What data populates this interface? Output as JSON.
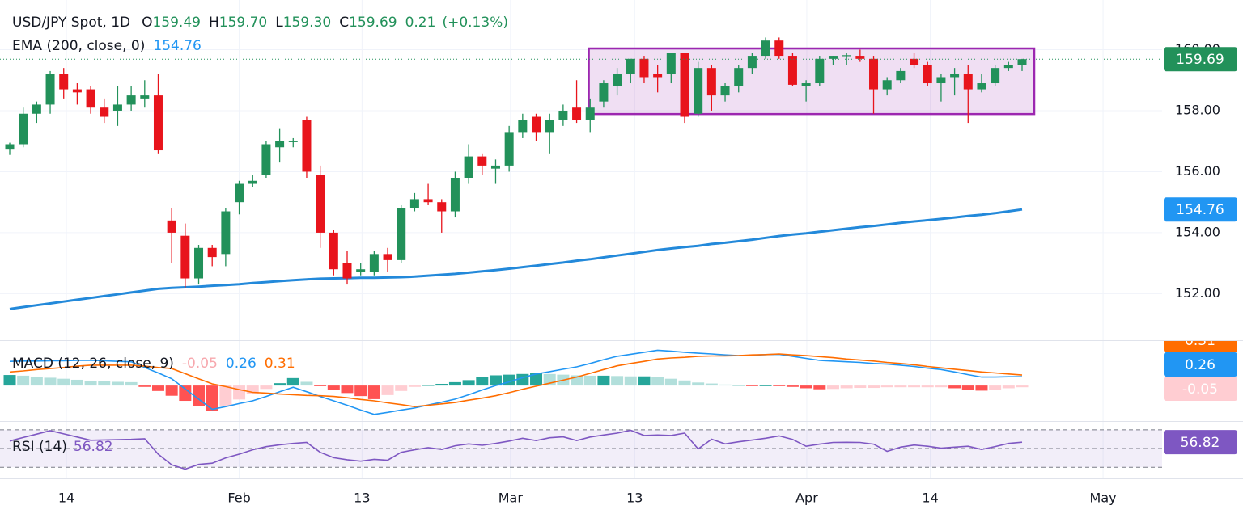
{
  "chart_data": [
    {
      "type": "candlestick",
      "header": {
        "symbol": "USD/JPY Spot, 1D",
        "fields": [
          {
            "key": "O",
            "value": "159.49"
          },
          {
            "key": "H",
            "value": "159.70"
          },
          {
            "key": "L",
            "value": "159.30"
          },
          {
            "key": "C",
            "value": "159.69"
          }
        ],
        "change": "0.21",
        "change_pct": "(+0.13%)"
      },
      "up_color": "#22915a",
      "down_color": "#e8141c",
      "candles": [
        {
          "o": 156.75,
          "h": 156.95,
          "l": 156.55,
          "c": 156.9
        },
        {
          "o": 156.9,
          "h": 158.1,
          "l": 156.8,
          "c": 157.9
        },
        {
          "o": 157.9,
          "h": 158.3,
          "l": 157.6,
          "c": 158.2
        },
        {
          "o": 158.2,
          "h": 159.3,
          "l": 157.9,
          "c": 159.2
        },
        {
          "o": 159.2,
          "h": 159.4,
          "l": 158.4,
          "c": 158.7
        },
        {
          "o": 158.7,
          "h": 158.9,
          "l": 158.2,
          "c": 158.6
        },
        {
          "o": 158.7,
          "h": 158.8,
          "l": 157.9,
          "c": 158.1
        },
        {
          "o": 158.1,
          "h": 158.4,
          "l": 157.6,
          "c": 157.8
        },
        {
          "o": 158.0,
          "h": 158.8,
          "l": 157.5,
          "c": 158.2
        },
        {
          "o": 158.2,
          "h": 158.8,
          "l": 158.0,
          "c": 158.5
        },
        {
          "o": 158.4,
          "h": 159.0,
          "l": 158.1,
          "c": 158.5
        },
        {
          "o": 158.5,
          "h": 159.2,
          "l": 156.6,
          "c": 156.7
        },
        {
          "o": 154.4,
          "h": 154.8,
          "l": 153.0,
          "c": 154.0
        },
        {
          "o": 153.9,
          "h": 154.3,
          "l": 152.2,
          "c": 152.5
        },
        {
          "o": 152.5,
          "h": 153.6,
          "l": 152.3,
          "c": 153.5
        },
        {
          "o": 153.5,
          "h": 153.6,
          "l": 152.9,
          "c": 153.2
        },
        {
          "o": 153.3,
          "h": 154.8,
          "l": 152.9,
          "c": 154.7
        },
        {
          "o": 155.0,
          "h": 155.7,
          "l": 154.6,
          "c": 155.6
        },
        {
          "o": 155.6,
          "h": 155.9,
          "l": 155.5,
          "c": 155.7
        },
        {
          "o": 155.9,
          "h": 157.0,
          "l": 155.8,
          "c": 156.9
        },
        {
          "o": 156.8,
          "h": 157.4,
          "l": 156.3,
          "c": 157.0
        },
        {
          "o": 157.0,
          "h": 157.1,
          "l": 156.8,
          "c": 157.0
        },
        {
          "o": 157.7,
          "h": 157.8,
          "l": 155.8,
          "c": 156.0
        },
        {
          "o": 155.9,
          "h": 156.2,
          "l": 153.5,
          "c": 154.0
        },
        {
          "o": 154.0,
          "h": 154.1,
          "l": 152.6,
          "c": 152.8
        },
        {
          "o": 153.0,
          "h": 153.4,
          "l": 152.3,
          "c": 152.5
        },
        {
          "o": 152.7,
          "h": 153.0,
          "l": 152.6,
          "c": 152.8
        },
        {
          "o": 152.7,
          "h": 153.4,
          "l": 152.6,
          "c": 153.3
        },
        {
          "o": 153.3,
          "h": 153.5,
          "l": 152.7,
          "c": 153.1
        },
        {
          "o": 153.1,
          "h": 154.9,
          "l": 153.0,
          "c": 154.8
        },
        {
          "o": 154.8,
          "h": 155.3,
          "l": 154.7,
          "c": 155.1
        },
        {
          "o": 155.1,
          "h": 155.6,
          "l": 154.9,
          "c": 155.0
        },
        {
          "o": 155.0,
          "h": 155.1,
          "l": 154.0,
          "c": 154.7
        },
        {
          "o": 154.7,
          "h": 156.0,
          "l": 154.5,
          "c": 155.8
        },
        {
          "o": 155.8,
          "h": 156.9,
          "l": 155.6,
          "c": 156.5
        },
        {
          "o": 156.5,
          "h": 156.6,
          "l": 155.9,
          "c": 156.2
        },
        {
          "o": 156.1,
          "h": 156.4,
          "l": 155.6,
          "c": 156.2
        },
        {
          "o": 156.2,
          "h": 157.5,
          "l": 156.0,
          "c": 157.3
        },
        {
          "o": 157.3,
          "h": 157.9,
          "l": 157.1,
          "c": 157.7
        },
        {
          "o": 157.8,
          "h": 157.9,
          "l": 157.0,
          "c": 157.3
        },
        {
          "o": 157.3,
          "h": 157.9,
          "l": 156.6,
          "c": 157.7
        },
        {
          "o": 157.7,
          "h": 158.2,
          "l": 157.5,
          "c": 158.0
        },
        {
          "o": 158.1,
          "h": 159.0,
          "l": 157.6,
          "c": 157.7
        },
        {
          "o": 157.7,
          "h": 158.4,
          "l": 157.3,
          "c": 158.1
        },
        {
          "o": 158.3,
          "h": 159.0,
          "l": 158.1,
          "c": 158.9
        },
        {
          "o": 158.8,
          "h": 159.4,
          "l": 158.5,
          "c": 159.2
        },
        {
          "o": 159.2,
          "h": 159.7,
          "l": 158.9,
          "c": 159.7
        },
        {
          "o": 159.7,
          "h": 159.8,
          "l": 158.9,
          "c": 159.1
        },
        {
          "o": 159.2,
          "h": 159.5,
          "l": 158.6,
          "c": 159.1
        },
        {
          "o": 159.2,
          "h": 159.9,
          "l": 158.9,
          "c": 159.9
        },
        {
          "o": 159.9,
          "h": 159.9,
          "l": 157.6,
          "c": 157.8
        },
        {
          "o": 157.9,
          "h": 159.6,
          "l": 157.8,
          "c": 159.4
        },
        {
          "o": 159.4,
          "h": 159.5,
          "l": 158.0,
          "c": 158.5
        },
        {
          "o": 158.5,
          "h": 158.9,
          "l": 158.3,
          "c": 158.8
        },
        {
          "o": 158.8,
          "h": 159.5,
          "l": 158.6,
          "c": 159.4
        },
        {
          "o": 159.4,
          "h": 159.9,
          "l": 159.2,
          "c": 159.8
        },
        {
          "o": 159.8,
          "h": 160.4,
          "l": 159.7,
          "c": 160.3
        },
        {
          "o": 160.3,
          "h": 160.4,
          "l": 159.7,
          "c": 159.8
        },
        {
          "o": 159.8,
          "h": 159.9,
          "l": 158.8,
          "c": 158.85
        },
        {
          "o": 158.8,
          "h": 159.0,
          "l": 158.3,
          "c": 158.9
        },
        {
          "o": 158.9,
          "h": 159.8,
          "l": 158.8,
          "c": 159.7
        },
        {
          "o": 159.7,
          "h": 159.8,
          "l": 159.5,
          "c": 159.8
        },
        {
          "o": 159.8,
          "h": 159.9,
          "l": 159.5,
          "c": 159.82
        },
        {
          "o": 159.8,
          "h": 160.0,
          "l": 159.6,
          "c": 159.7
        },
        {
          "o": 159.7,
          "h": 159.8,
          "l": 157.9,
          "c": 158.7
        },
        {
          "o": 158.7,
          "h": 159.1,
          "l": 158.5,
          "c": 159.0
        },
        {
          "o": 159.0,
          "h": 159.4,
          "l": 158.9,
          "c": 159.3
        },
        {
          "o": 159.7,
          "h": 159.9,
          "l": 159.4,
          "c": 159.5
        },
        {
          "o": 159.5,
          "h": 159.6,
          "l": 158.8,
          "c": 158.9
        },
        {
          "o": 158.9,
          "h": 159.2,
          "l": 158.3,
          "c": 159.1
        },
        {
          "o": 159.1,
          "h": 159.4,
          "l": 158.5,
          "c": 159.2
        },
        {
          "o": 159.2,
          "h": 159.5,
          "l": 157.6,
          "c": 158.7
        },
        {
          "o": 158.7,
          "h": 159.2,
          "l": 158.6,
          "c": 158.9
        },
        {
          "o": 158.9,
          "h": 159.5,
          "l": 158.8,
          "c": 159.4
        },
        {
          "o": 159.4,
          "h": 159.6,
          "l": 159.3,
          "c": 159.5
        },
        {
          "o": 159.49,
          "h": 159.7,
          "l": 159.3,
          "c": 159.69
        }
      ],
      "ema": {
        "label": "EMA (200, close, 0)",
        "color": "#2389da",
        "values": [
          151.5,
          151.56,
          151.62,
          151.68,
          151.74,
          151.8,
          151.86,
          151.92,
          151.98,
          152.04,
          152.1,
          152.16,
          152.19,
          152.21,
          152.23,
          152.26,
          152.28,
          152.31,
          152.35,
          152.38,
          152.41,
          152.44,
          152.47,
          152.49,
          152.5,
          152.51,
          152.52,
          152.52,
          152.53,
          152.54,
          152.56,
          152.59,
          152.62,
          152.65,
          152.69,
          152.73,
          152.77,
          152.82,
          152.87,
          152.92,
          152.97,
          153.02,
          153.08,
          153.13,
          153.19,
          153.25,
          153.31,
          153.37,
          153.43,
          153.48,
          153.53,
          153.57,
          153.63,
          153.67,
          153.72,
          153.77,
          153.83,
          153.89,
          153.94,
          153.98,
          154.03,
          154.08,
          154.13,
          154.18,
          154.22,
          154.27,
          154.32,
          154.37,
          154.41,
          154.45,
          154.5,
          154.55,
          154.59,
          154.64,
          154.7,
          154.76
        ]
      },
      "range_box": {
        "from": 43,
        "to": 76,
        "top": 160.04,
        "bottom": 157.89,
        "color": "#9c27b0",
        "fill": "rgba(156,39,176,0.15)"
      },
      "ylim": [
        150.5,
        161.63
      ],
      "yticks": [
        {
          "value": 152,
          "label": "152.00"
        },
        {
          "value": 154,
          "label": "154.00"
        },
        {
          "value": 156,
          "label": "156.00"
        },
        {
          "value": 158,
          "label": "158.00"
        },
        {
          "value": 160,
          "label": "160.00"
        }
      ],
      "xticks": [
        {
          "value": 4.2,
          "label": "14"
        },
        {
          "value": 17.0,
          "label": "Feb"
        },
        {
          "value": 26.1,
          "label": "13"
        },
        {
          "value": 37.1,
          "label": "Mar"
        },
        {
          "value": 46.3,
          "label": "13"
        },
        {
          "value": 59.05,
          "label": "Apr"
        },
        {
          "value": 68.2,
          "label": "14"
        },
        {
          "value": 81.0,
          "label": "May"
        }
      ],
      "grid": true
    },
    {
      "type": "macd",
      "title": "MACD (12, 26, close, 9)",
      "series": [
        {
          "color": "#2196f3",
          "values": [
            0.71,
            0.72,
            0.72,
            0.73,
            0.73,
            0.74,
            0.74,
            0.73,
            0.71,
            0.7,
            0.53,
            0.37,
            0.2,
            -0.1,
            -0.4,
            -0.7,
            -0.62,
            -0.53,
            -0.45,
            -0.32,
            -0.18,
            -0.05,
            -0.18,
            -0.32,
            -0.45,
            -0.58,
            -0.72,
            -0.85,
            -0.79,
            -0.72,
            -0.66,
            -0.57,
            -0.49,
            -0.4,
            -0.27,
            -0.13,
            0,
            0.11,
            0.23,
            0.34,
            0.41,
            0.48,
            0.55,
            0.65,
            0.76,
            0.86,
            0.92,
            0.98,
            1.04,
            1.01,
            0.98,
            0.95,
            0.93,
            0.9,
            0.88,
            0.89,
            0.91,
            0.92,
            0.86,
            0.8,
            0.74,
            0.72,
            0.7,
            0.68,
            0.65,
            0.63,
            0.6,
            0.56,
            0.51,
            0.47,
            0.4,
            0.32,
            0.25,
            0.25,
            0.26,
            0.26
          ]
        },
        {
          "color": "#ff6d00",
          "values": [
            0.4,
            0.43,
            0.47,
            0.5,
            0.53,
            0.57,
            0.6,
            0.6,
            0.6,
            0.6,
            0.57,
            0.53,
            0.5,
            0.35,
            0.2,
            0.05,
            -0.03,
            -0.12,
            -0.2,
            -0.22,
            -0.25,
            -0.27,
            -0.29,
            -0.3,
            -0.32,
            -0.36,
            -0.41,
            -0.45,
            -0.51,
            -0.56,
            -0.62,
            -0.58,
            -0.54,
            -0.5,
            -0.43,
            -0.37,
            -0.3,
            -0.21,
            -0.11,
            -0.02,
            0.07,
            0.16,
            0.25,
            0.36,
            0.47,
            0.58,
            0.65,
            0.71,
            0.78,
            0.81,
            0.83,
            0.86,
            0.87,
            0.87,
            0.88,
            0.9,
            0.91,
            0.93,
            0.9,
            0.88,
            0.85,
            0.82,
            0.78,
            0.75,
            0.72,
            0.68,
            0.65,
            0.61,
            0.56,
            0.52,
            0.48,
            0.44,
            0.4,
            0.37,
            0.34,
            0.31
          ]
        }
      ],
      "histogram": {
        "colors": [
          "#26a69a",
          "#b2dfdb",
          "#ff5252",
          "#ffcdd2"
        ],
        "values": [
          0.31,
          0.29,
          0.25,
          0.23,
          0.2,
          0.17,
          0.14,
          0.13,
          0.11,
          0.1,
          -0.04,
          -0.16,
          -0.3,
          -0.45,
          -0.6,
          -0.75,
          -0.59,
          -0.41,
          -0.25,
          -0.1,
          0.07,
          0.22,
          0.11,
          -0.02,
          -0.13,
          -0.22,
          -0.31,
          -0.4,
          -0.28,
          -0.16,
          -0.04,
          0.01,
          0.05,
          0.1,
          0.16,
          0.24,
          0.3,
          0.32,
          0.34,
          0.36,
          0.34,
          0.32,
          0.3,
          0.29,
          0.29,
          0.28,
          0.27,
          0.27,
          0.26,
          0.2,
          0.15,
          0.09,
          0.06,
          0.03,
          0.0,
          -0.01,
          0.0,
          -0.01,
          -0.04,
          -0.08,
          -0.11,
          -0.1,
          -0.08,
          -0.07,
          -0.07,
          -0.05,
          -0.05,
          -0.05,
          -0.05,
          -0.05,
          -0.08,
          -0.12,
          -0.15,
          -0.12,
          -0.08,
          -0.05
        ]
      },
      "ylim": [
        -1.02,
        1.31
      ]
    },
    {
      "type": "line",
      "title": "RSI (14)",
      "color": "#7e57c2",
      "values": [
        58.1,
        61.8,
        65.4,
        69.1,
        65.7,
        62.3,
        58.9,
        59.2,
        59.5,
        59.8,
        60.5,
        44.0,
        32.6,
        28.0,
        33.0,
        34.3,
        40.0,
        44.0,
        48.7,
        52.0,
        54.0,
        55.5,
        56.5,
        46.0,
        40.2,
        38.0,
        36.5,
        38.5,
        37.5,
        46.0,
        48.7,
        51.0,
        49.0,
        53.0,
        55.0,
        53.5,
        55.5,
        58.0,
        61.0,
        58.5,
        61.5,
        62.5,
        58.5,
        62.3,
        64.5,
        66.5,
        69.5,
        64.0,
        64.5,
        64.0,
        66.5,
        49.6,
        60.0,
        55.0,
        57.2,
        59.0,
        61.0,
        63.5,
        59.8,
        52.5,
        54.7,
        56.5,
        56.7,
        56.5,
        54.7,
        47.0,
        51.5,
        53.8,
        52.5,
        50.4,
        51.5,
        52.5,
        49.0,
        52.1,
        55.5,
        56.82
      ],
      "bands": [
        70,
        50,
        30
      ],
      "band_fill": "rgba(126,87,194,0.1)",
      "ylim": [
        19.8,
        77.7
      ]
    }
  ]
}
